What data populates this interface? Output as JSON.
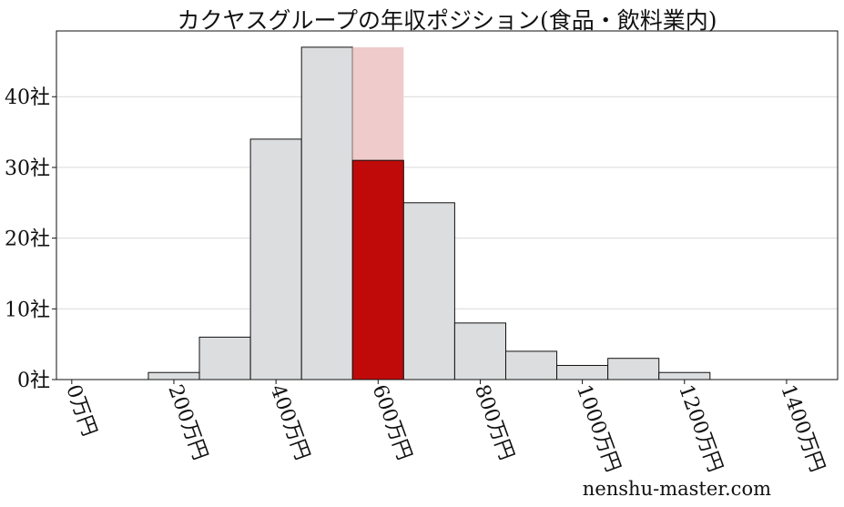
{
  "chart_data": {
    "type": "bar",
    "title": "カクヤスグループの年収ポジション(食品・飲料業内)",
    "xlabel": "",
    "ylabel": "",
    "x_unit": "万円",
    "y_unit": "社",
    "bin_width": 100,
    "bins": [
      {
        "start": 150,
        "end": 250,
        "count": 1
      },
      {
        "start": 250,
        "end": 350,
        "count": 6
      },
      {
        "start": 350,
        "end": 450,
        "count": 34
      },
      {
        "start": 450,
        "end": 550,
        "count": 47
      },
      {
        "start": 550,
        "end": 650,
        "count": 31,
        "highlight_total": 47
      },
      {
        "start": 650,
        "end": 750,
        "count": 25
      },
      {
        "start": 750,
        "end": 850,
        "count": 8
      },
      {
        "start": 850,
        "end": 950,
        "count": 4
      },
      {
        "start": 950,
        "end": 1050,
        "count": 2
      },
      {
        "start": 1050,
        "end": 1150,
        "count": 3
      },
      {
        "start": 1150,
        "end": 1250,
        "count": 1
      }
    ],
    "x_ticks": [
      {
        "value": 0,
        "label": "0万円"
      },
      {
        "value": 200,
        "label": "200万円"
      },
      {
        "value": 400,
        "label": "400万円"
      },
      {
        "value": 600,
        "label": "600万円"
      },
      {
        "value": 800,
        "label": "800万円"
      },
      {
        "value": 1000,
        "label": "1000万円"
      },
      {
        "value": 1200,
        "label": "1200万円"
      },
      {
        "value": 1400,
        "label": "1400万円"
      }
    ],
    "y_ticks": [
      {
        "value": 0,
        "label": "0社"
      },
      {
        "value": 10,
        "label": "10社"
      },
      {
        "value": 20,
        "label": "20社"
      },
      {
        "value": 30,
        "label": "30社"
      },
      {
        "value": 40,
        "label": "40社"
      }
    ],
    "xlim": [
      -30,
      1500
    ],
    "ylim": [
      0,
      49.3
    ],
    "grid": "horizontal",
    "legend": "none",
    "colors": {
      "bar": "#dcdddf",
      "highlight": "#c00a0a",
      "highlight_bg": "#f0cbcb",
      "edge": "#111111",
      "grid": "#d9d9d9"
    }
  },
  "watermark": "nenshu-master.com"
}
